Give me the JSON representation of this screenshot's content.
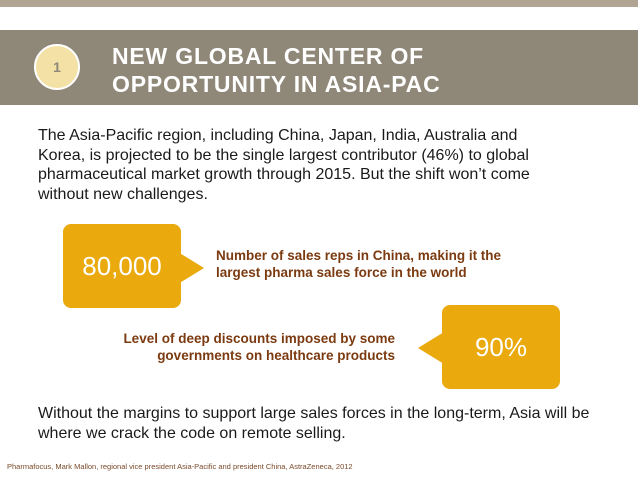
{
  "colors": {
    "header_band": "#8f8778",
    "top_band": "#b1a493",
    "accent": "#eaa90c",
    "badge_fill": "#f3e1a6",
    "stat_text": "#7b3a10"
  },
  "header": {
    "badge_number": "1",
    "title_line1": "NEW GLOBAL CENTER OF",
    "title_line2": "OPPORTUNITY IN ASIA-PAC"
  },
  "intro": {
    "line1": "The Asia-Pacific region, including China, Japan, India, Australia and",
    "line2": "Korea, is projected to be the single largest contributor (46%) to global",
    "line3": "pharmaceutical market growth through 2015. But the shift won’t come",
    "line4": "without new challenges."
  },
  "stats": [
    {
      "value": "80,000",
      "desc_line1": "Number of sales reps in China, making it the",
      "desc_line2": "largest pharma sales force in the world"
    },
    {
      "value": "90%",
      "desc_line1": "Level of deep discounts imposed by some",
      "desc_line2": "governments on healthcare products"
    }
  ],
  "closing": {
    "line1": "Without the margins to support large sales forces in the long-term, Asia will be",
    "line2": "where we crack the code on remote selling."
  },
  "source": "Pharmafocus, Mark Mallon, regional vice president Asia-Pacific and president China, AstraZeneca, 2012"
}
